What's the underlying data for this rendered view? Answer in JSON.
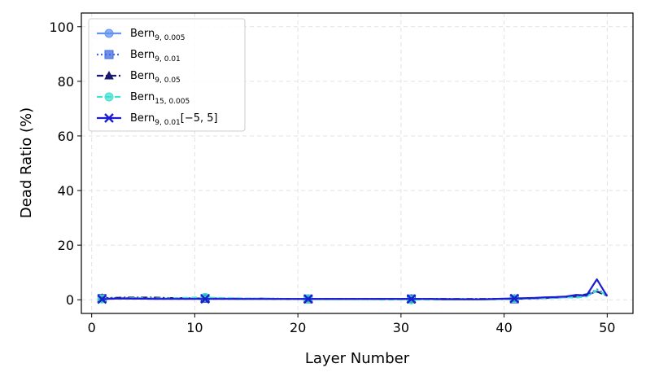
{
  "chart_data": {
    "type": "line",
    "title": "",
    "xlabel": "Layer Number",
    "ylabel": "Dead Ratio (%)",
    "xlim": [
      -1,
      52.5
    ],
    "ylim": [
      -5,
      105
    ],
    "xticks": [
      0,
      10,
      20,
      30,
      40,
      50
    ],
    "yticks": [
      0,
      20,
      40,
      60,
      80,
      100
    ],
    "grid": true,
    "legend_position": "top-left",
    "x": [
      1,
      2,
      3,
      4,
      5,
      6,
      7,
      8,
      9,
      10,
      11,
      12,
      13,
      14,
      15,
      16,
      17,
      18,
      19,
      20,
      21,
      22,
      23,
      24,
      25,
      26,
      27,
      28,
      29,
      30,
      31,
      32,
      33,
      34,
      35,
      36,
      37,
      38,
      39,
      40,
      41,
      42,
      43,
      44,
      45,
      46,
      47,
      48,
      49,
      50
    ],
    "series": [
      {
        "name": "Bern",
        "subscript": "9, 0.005",
        "suffix": "",
        "color": "#6495ed",
        "dash": "solid",
        "marker": "circle",
        "values": [
          0.4,
          0.5,
          0.5,
          0.5,
          0.5,
          0.5,
          0.5,
          0.5,
          0.4,
          0.4,
          0.5,
          0.4,
          0.4,
          0.3,
          0.3,
          0.3,
          0.3,
          0.3,
          0.3,
          0.3,
          0.3,
          0.3,
          0.3,
          0.3,
          0.3,
          0.3,
          0.3,
          0.3,
          0.3,
          0.3,
          0.3,
          0.3,
          0.3,
          0.3,
          0.2,
          0.2,
          0.2,
          0.2,
          0.2,
          0.3,
          0.3,
          0.4,
          0.5,
          0.6,
          0.7,
          0.9,
          1.0,
          1.5,
          3.2,
          1.8
        ]
      },
      {
        "name": "Bern",
        "subscript": "9, 0.01",
        "suffix": "",
        "color": "#4169e1",
        "dash": "dotted",
        "marker": "square",
        "values": [
          0.5,
          0.6,
          0.6,
          0.6,
          0.6,
          0.6,
          0.5,
          0.5,
          0.5,
          0.5,
          0.5,
          0.5,
          0.4,
          0.4,
          0.4,
          0.4,
          0.4,
          0.4,
          0.3,
          0.3,
          0.3,
          0.3,
          0.3,
          0.3,
          0.3,
          0.3,
          0.3,
          0.3,
          0.3,
          0.3,
          0.3,
          0.3,
          0.3,
          0.3,
          0.3,
          0.2,
          0.2,
          0.2,
          0.3,
          0.3,
          0.3,
          0.4,
          0.5,
          0.6,
          0.8,
          1.0,
          1.2,
          1.8,
          3.8,
          1.9
        ]
      },
      {
        "name": "Bern",
        "subscript": "9, 0.05",
        "suffix": "",
        "color": "#191970",
        "dash": "dashdot",
        "marker": "triangle",
        "values": [
          0.6,
          0.7,
          0.8,
          0.8,
          0.8,
          0.8,
          0.7,
          0.6,
          0.6,
          0.5,
          0.5,
          0.5,
          0.4,
          0.4,
          0.4,
          0.4,
          0.4,
          0.3,
          0.3,
          0.3,
          0.3,
          0.3,
          0.3,
          0.3,
          0.3,
          0.3,
          0.3,
          0.3,
          0.3,
          0.3,
          0.3,
          0.3,
          0.3,
          0.3,
          0.3,
          0.3,
          0.3,
          0.3,
          0.3,
          0.3,
          0.4,
          0.5,
          0.6,
          0.7,
          0.9,
          1.1,
          1.4,
          2.0,
          3.0,
          1.5
        ]
      },
      {
        "name": "Bern",
        "subscript": "15, 0.005",
        "suffix": "",
        "color": "#40e0d0",
        "dash": "dashed",
        "marker": "circle",
        "values": [
          0.3,
          0.5,
          0.5,
          0.6,
          0.6,
          0.5,
          0.5,
          0.6,
          0.7,
          0.8,
          0.9,
          0.7,
          0.6,
          0.6,
          0.5,
          0.4,
          0.4,
          0.3,
          0.3,
          0.3,
          0.3,
          0.2,
          0.2,
          0.2,
          0.2,
          0.2,
          0.2,
          0.1,
          0.1,
          0.1,
          0.0,
          0.1,
          0.1,
          0.1,
          0.2,
          0.3,
          0.2,
          0.2,
          0.2,
          0.3,
          0.4,
          0.5,
          0.6,
          0.7,
          0.8,
          0.9,
          0.8,
          1.2,
          3.5,
          1.7
        ]
      },
      {
        "name": "Bern",
        "subscript": "9, 0.01",
        "suffix": "[−5, 5]",
        "color": "#1c1cd0",
        "dash": "solid",
        "marker": "x",
        "values": [
          0.2,
          0.4,
          0.5,
          0.4,
          0.4,
          0.3,
          0.3,
          0.3,
          0.3,
          0.3,
          0.3,
          0.3,
          0.3,
          0.3,
          0.3,
          0.3,
          0.3,
          0.3,
          0.3,
          0.3,
          0.3,
          0.3,
          0.3,
          0.3,
          0.3,
          0.3,
          0.3,
          0.3,
          0.3,
          0.3,
          0.3,
          0.3,
          0.3,
          0.2,
          0.2,
          0.2,
          0.2,
          0.2,
          0.3,
          0.4,
          0.5,
          0.6,
          0.7,
          0.9,
          1.0,
          1.2,
          1.8,
          1.6,
          7.5,
          1.3
        ]
      }
    ]
  }
}
